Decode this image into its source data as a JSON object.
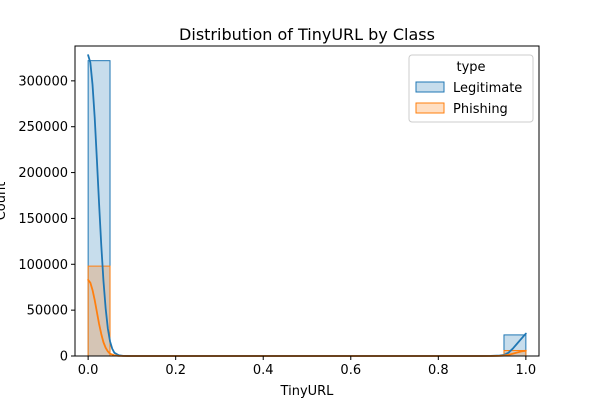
{
  "chart_data": {
    "type": "histogram",
    "title": "Distribution of TinyURL by Class",
    "xlabel": "TinyURL",
    "ylabel": "Count",
    "xlim": [
      -0.03,
      1.03
    ],
    "ylim": [
      0,
      338000
    ],
    "x_ticks": [
      0.0,
      0.2,
      0.4,
      0.6,
      0.8,
      1.0
    ],
    "x_tick_labels": [
      "0.0",
      "0.2",
      "0.4",
      "0.6",
      "0.8",
      "1.0"
    ],
    "y_ticks": [
      0,
      50000,
      100000,
      150000,
      200000,
      250000,
      300000
    ],
    "y_tick_labels": [
      "0",
      "50000",
      "100000",
      "150000",
      "200000",
      "250000",
      "300000"
    ],
    "bin_width": 0.05,
    "legend": {
      "title": "type",
      "position": "top-right"
    },
    "series": [
      {
        "name": "Legitimate",
        "color": "#1f77b4",
        "bins": [
          {
            "x0": 0.0,
            "x1": 0.05,
            "count": 322000
          },
          {
            "x0": 0.95,
            "x1": 1.0,
            "count": 23000
          }
        ],
        "kde": [
          [
            0.0,
            328000
          ],
          [
            0.005,
            320000
          ],
          [
            0.01,
            296000
          ],
          [
            0.015,
            260000
          ],
          [
            0.02,
            214000
          ],
          [
            0.025,
            166000
          ],
          [
            0.03,
            121000
          ],
          [
            0.035,
            82000
          ],
          [
            0.04,
            52000
          ],
          [
            0.045,
            30000
          ],
          [
            0.05,
            16000
          ],
          [
            0.055,
            8000
          ],
          [
            0.06,
            3500
          ],
          [
            0.07,
            800
          ],
          [
            0.08,
            150
          ],
          [
            0.1,
            0
          ],
          [
            0.9,
            0
          ],
          [
            0.92,
            100
          ],
          [
            0.94,
            500
          ],
          [
            0.95,
            1200
          ],
          [
            0.96,
            3500
          ],
          [
            0.97,
            8000
          ],
          [
            0.98,
            13500
          ],
          [
            0.99,
            19000
          ],
          [
            1.0,
            24500
          ]
        ]
      },
      {
        "name": "Phishing",
        "color": "#ff7f0e",
        "bins": [
          {
            "x0": 0.0,
            "x1": 0.05,
            "count": 98000
          },
          {
            "x0": 0.95,
            "x1": 1.0,
            "count": 6000
          }
        ],
        "kde": [
          [
            0.0,
            83000
          ],
          [
            0.005,
            80000
          ],
          [
            0.01,
            72000
          ],
          [
            0.015,
            61000
          ],
          [
            0.02,
            48000
          ],
          [
            0.025,
            35000
          ],
          [
            0.03,
            24000
          ],
          [
            0.035,
            15000
          ],
          [
            0.04,
            9000
          ],
          [
            0.045,
            5000
          ],
          [
            0.05,
            2500
          ],
          [
            0.06,
            700
          ],
          [
            0.07,
            100
          ],
          [
            0.09,
            0
          ],
          [
            0.92,
            0
          ],
          [
            0.94,
            200
          ],
          [
            0.95,
            500
          ],
          [
            0.96,
            1200
          ],
          [
            0.97,
            2500
          ],
          [
            0.98,
            3800
          ],
          [
            0.99,
            5000
          ],
          [
            1.0,
            5800
          ]
        ]
      }
    ]
  }
}
